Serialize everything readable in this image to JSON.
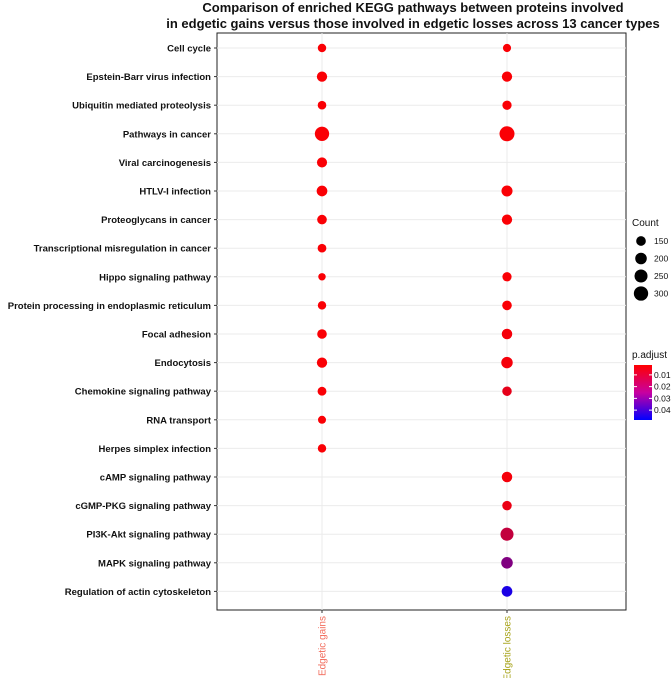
{
  "chart_data": {
    "type": "scatter",
    "title": [
      "Comparison of enriched KEGG pathways between proteins involved",
      "in edgetic gains versus those involved in edgetic losses across 13 cancer types"
    ],
    "categories_x": [
      "Edgetic gains",
      "Edgetic losses"
    ],
    "x_label_colors": [
      "#f26c5c",
      "#a7a31a"
    ],
    "categories_y": [
      "Cell cycle",
      "Epstein-Barr virus infection",
      "Ubiquitin mediated proteolysis",
      "Pathways in cancer",
      "Viral carcinogenesis",
      "HTLV-I infection",
      "Proteoglycans in cancer",
      "Transcriptional misregulation in cancer",
      "Hippo signaling pathway",
      "Protein processing in endoplasmic reticulum",
      "Focal adhesion",
      "Endocytosis",
      "Chemokine signaling pathway",
      "RNA transport",
      "Herpes simplex infection",
      "cAMP signaling pathway",
      "cGMP-PKG signaling pathway",
      "PI3K-Akt signaling pathway",
      "MAPK signaling pathway",
      "Regulation of actin cytoskeleton"
    ],
    "points": [
      {
        "pathway": "Cell cycle",
        "group": "Edgetic gains",
        "count": 125,
        "p_adjust": 0.001
      },
      {
        "pathway": "Epstein-Barr virus infection",
        "group": "Edgetic gains",
        "count": 165,
        "p_adjust": 0.001
      },
      {
        "pathway": "Ubiquitin mediated proteolysis",
        "group": "Edgetic gains",
        "count": 128,
        "p_adjust": 0.001
      },
      {
        "pathway": "Pathways in cancer",
        "group": "Edgetic gains",
        "count": 300,
        "p_adjust": 0.001
      },
      {
        "pathway": "Viral carcinogenesis",
        "group": "Edgetic gains",
        "count": 160,
        "p_adjust": 0.001
      },
      {
        "pathway": "HTLV-I infection",
        "group": "Edgetic gains",
        "count": 175,
        "p_adjust": 0.001
      },
      {
        "pathway": "Proteoglycans in cancer",
        "group": "Edgetic gains",
        "count": 148,
        "p_adjust": 0.001
      },
      {
        "pathway": "Transcriptional misregulation in cancer",
        "group": "Edgetic gains",
        "count": 130,
        "p_adjust": 0.001
      },
      {
        "pathway": "Hippo signaling pathway",
        "group": "Edgetic gains",
        "count": 110,
        "p_adjust": 0.001
      },
      {
        "pathway": "Protein processing in endoplasmic reticulum",
        "group": "Edgetic gains",
        "count": 125,
        "p_adjust": 0.001
      },
      {
        "pathway": "Focal adhesion",
        "group": "Edgetic gains",
        "count": 148,
        "p_adjust": 0.001
      },
      {
        "pathway": "Endocytosis",
        "group": "Edgetic gains",
        "count": 165,
        "p_adjust": 0.001
      },
      {
        "pathway": "Chemokine signaling pathway",
        "group": "Edgetic gains",
        "count": 132,
        "p_adjust": 0.001
      },
      {
        "pathway": "RNA transport",
        "group": "Edgetic gains",
        "count": 118,
        "p_adjust": 0.001
      },
      {
        "pathway": "Herpes simplex infection",
        "group": "Edgetic gains",
        "count": 125,
        "p_adjust": 0.001
      },
      {
        "pathway": "Cell cycle",
        "group": "Edgetic losses",
        "count": 120,
        "p_adjust": 0.001
      },
      {
        "pathway": "Epstein-Barr virus infection",
        "group": "Edgetic losses",
        "count": 165,
        "p_adjust": 0.001
      },
      {
        "pathway": "Ubiquitin mediated proteolysis",
        "group": "Edgetic losses",
        "count": 140,
        "p_adjust": 0.001
      },
      {
        "pathway": "Pathways in cancer",
        "group": "Edgetic losses",
        "count": 330,
        "p_adjust": 0.001
      },
      {
        "pathway": "HTLV-I infection",
        "group": "Edgetic losses",
        "count": 185,
        "p_adjust": 0.001
      },
      {
        "pathway": "Proteoglycans in cancer",
        "group": "Edgetic losses",
        "count": 165,
        "p_adjust": 0.001
      },
      {
        "pathway": "Hippo signaling pathway",
        "group": "Edgetic losses",
        "count": 140,
        "p_adjust": 0.001
      },
      {
        "pathway": "Protein processing in endoplasmic reticulum",
        "group": "Edgetic losses",
        "count": 148,
        "p_adjust": 0.001
      },
      {
        "pathway": "Focal adhesion",
        "group": "Edgetic losses",
        "count": 170,
        "p_adjust": 0.002
      },
      {
        "pathway": "Endocytosis",
        "group": "Edgetic losses",
        "count": 195,
        "p_adjust": 0.002
      },
      {
        "pathway": "Chemokine signaling pathway",
        "group": "Edgetic losses",
        "count": 145,
        "p_adjust": 0.005
      },
      {
        "pathway": "cAMP signaling pathway",
        "group": "Edgetic losses",
        "count": 170,
        "p_adjust": 0.002
      },
      {
        "pathway": "cGMP-PKG signaling pathway",
        "group": "Edgetic losses",
        "count": 145,
        "p_adjust": 0.004
      },
      {
        "pathway": "PI3K-Akt signaling pathway",
        "group": "Edgetic losses",
        "count": 250,
        "p_adjust": 0.012
      },
      {
        "pathway": "MAPK signaling pathway",
        "group": "Edgetic losses",
        "count": 200,
        "p_adjust": 0.025
      },
      {
        "pathway": "Regulation of actin cytoskeleton",
        "group": "Edgetic losses",
        "count": 175,
        "p_adjust": 0.045
      }
    ],
    "size_legend": {
      "title": "Count",
      "values": [
        150,
        200,
        250,
        300
      ],
      "labels": [
        "150",
        "200",
        "250",
        "300"
      ]
    },
    "color_legend": {
      "title": "p.adjust",
      "range": [
        0.0,
        0.05
      ],
      "ticks": [
        0.01,
        0.02,
        0.03,
        0.04
      ],
      "tick_labels": [
        "0.01",
        "0.02",
        "0.03",
        "0.04"
      ],
      "low_color": "#ff0000",
      "high_color": "#0000ff"
    },
    "grid": true,
    "legend_position": "right"
  }
}
